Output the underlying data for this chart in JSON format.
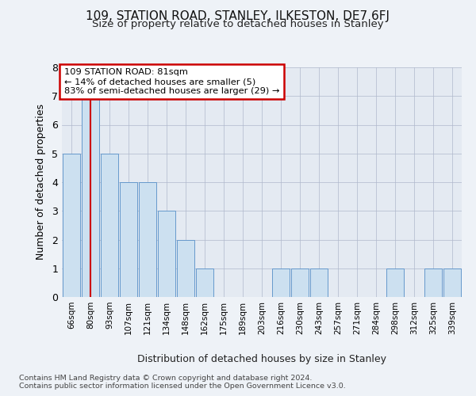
{
  "title1": "109, STATION ROAD, STANLEY, ILKESTON, DE7 6FJ",
  "title2": "Size of property relative to detached houses in Stanley",
  "xlabel": "Distribution of detached houses by size in Stanley",
  "ylabel": "Number of detached properties",
  "categories": [
    "66sqm",
    "80sqm",
    "93sqm",
    "107sqm",
    "121sqm",
    "134sqm",
    "148sqm",
    "162sqm",
    "175sqm",
    "189sqm",
    "203sqm",
    "216sqm",
    "230sqm",
    "243sqm",
    "257sqm",
    "271sqm",
    "284sqm",
    "298sqm",
    "312sqm",
    "325sqm",
    "339sqm"
  ],
  "values": [
    5,
    7,
    5,
    4,
    4,
    3,
    2,
    1,
    0,
    0,
    0,
    1,
    1,
    1,
    0,
    0,
    0,
    1,
    0,
    1,
    1
  ],
  "bar_color": "#cce0f0",
  "bar_edge_color": "#6699cc",
  "grid_color": "#b0b8cc",
  "annotation_text_line1": "109 STATION ROAD: 81sqm",
  "annotation_text_line2": "← 14% of detached houses are smaller (5)",
  "annotation_text_line3": "83% of semi-detached houses are larger (29) →",
  "annotation_box_color": "#ffffff",
  "annotation_box_edge": "#cc0000",
  "vline_color": "#cc0000",
  "vline_x": 1.5,
  "ylim": [
    0,
    8
  ],
  "yticks": [
    0,
    1,
    2,
    3,
    4,
    5,
    6,
    7,
    8
  ],
  "footer1": "Contains HM Land Registry data © Crown copyright and database right 2024.",
  "footer2": "Contains public sector information licensed under the Open Government Licence v3.0.",
  "bg_color": "#eef2f7",
  "plot_bg_color": "#e4eaf2"
}
